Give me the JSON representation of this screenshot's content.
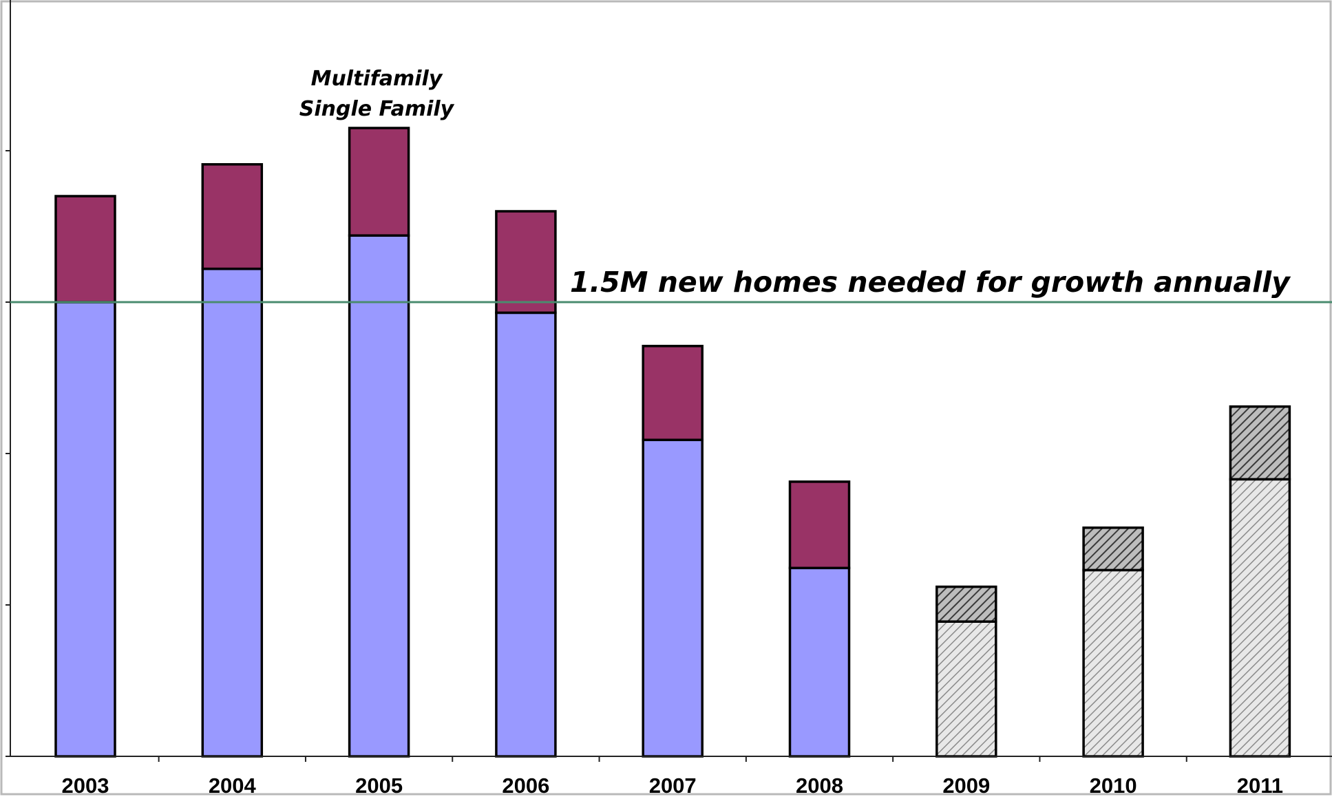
{
  "chart_data": {
    "type": "bar",
    "stacked": true,
    "title": "",
    "xlabel": "",
    "ylabel": "",
    "categories": [
      "2003",
      "2004",
      "2005",
      "2006",
      "2007",
      "2008",
      "2009",
      "2010",
      "2011"
    ],
    "projected_categories": [
      "2009",
      "2010",
      "2011"
    ],
    "series": [
      {
        "name": "Single Family",
        "color": "#9999ff",
        "values": [
          1.5,
          1.61,
          1.72,
          1.465,
          1.045,
          0.622,
          0.445,
          0.615,
          0.915
        ]
      },
      {
        "name": "Multifamily",
        "color": "#993366",
        "values": [
          0.35,
          0.345,
          0.355,
          0.335,
          0.31,
          0.285,
          0.115,
          0.14,
          0.24
        ]
      }
    ],
    "projected_style": {
      "single_family_fill": "#e8e8e8",
      "multifamily_fill": "#bdbdbd",
      "hatch_color": "#555555"
    },
    "ylim": [
      0,
      2.5
    ],
    "yticks": [
      0.5,
      1.0,
      1.5,
      2.0
    ],
    "y_tick_labels_visible": false,
    "grid": false,
    "legend": {
      "placement": "annotation above 2005 bar",
      "entries": [
        "Multifamily",
        "Single Family"
      ]
    },
    "reference_line": {
      "value": 1.5,
      "color": "#4a8c6f",
      "label": "1.5M new homes needed for growth annually"
    }
  }
}
